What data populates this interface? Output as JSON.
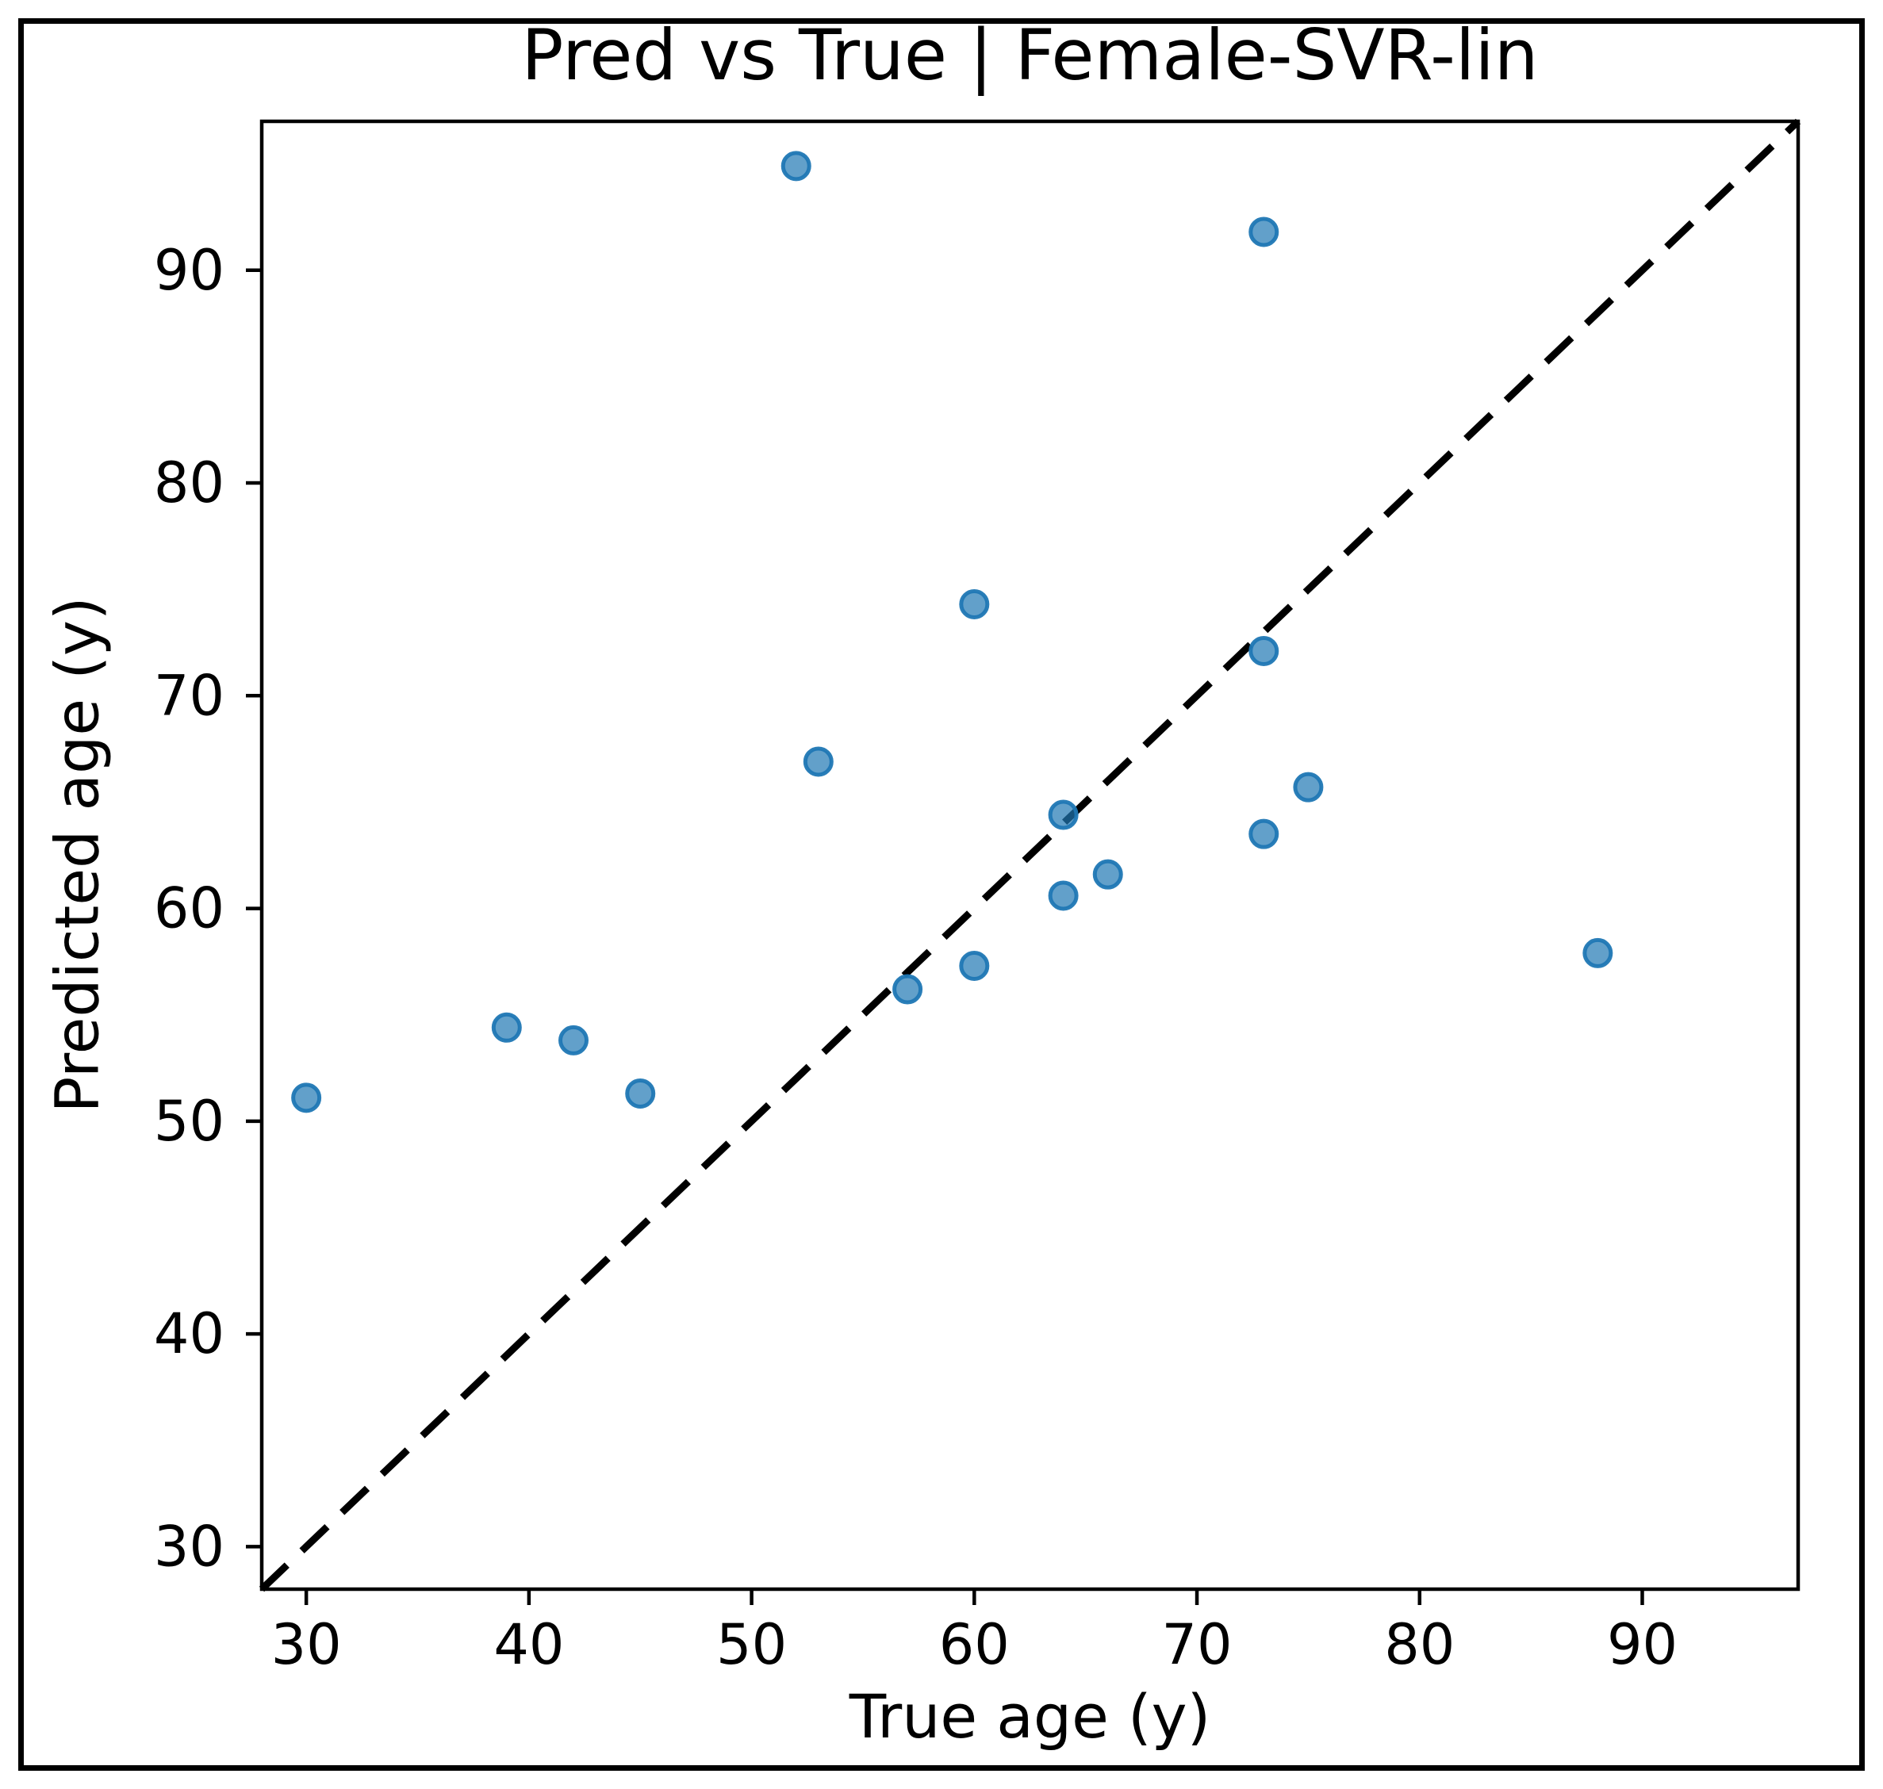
{
  "figure": {
    "background_color": "#ffffff",
    "frame_color": "#000000",
    "accent_color": "#1f77b4"
  },
  "chart_data": {
    "type": "scatter",
    "title": "Pred vs True | Female-SVR-lin",
    "xlabel": "True age (y)",
    "ylabel": "Predicted age (y)",
    "xlim": [
      28,
      97
    ],
    "ylim": [
      28,
      97
    ],
    "xticks": [
      30,
      40,
      50,
      60,
      70,
      80,
      90
    ],
    "yticks": [
      30,
      40,
      50,
      60,
      70,
      80,
      90
    ],
    "grid": false,
    "legend": null,
    "identity_line": {
      "style": "dashed",
      "color": "#000000",
      "x": [
        28,
        97
      ],
      "y": [
        28,
        97
      ]
    },
    "series": [
      {
        "name": "predicted-vs-true-points",
        "marker": "circle",
        "color": "#1f77b4",
        "alpha": 0.7,
        "points": [
          [
            30,
            51.1
          ],
          [
            39,
            54.4
          ],
          [
            42,
            53.8
          ],
          [
            45,
            51.3
          ],
          [
            52,
            94.9
          ],
          [
            53,
            66.9
          ],
          [
            57,
            56.2
          ],
          [
            60,
            74.3
          ],
          [
            60,
            57.3
          ],
          [
            64,
            64.4
          ],
          [
            64,
            60.6
          ],
          [
            66,
            61.6
          ],
          [
            73,
            91.8
          ],
          [
            73,
            72.1
          ],
          [
            73,
            63.5
          ],
          [
            75,
            65.7
          ],
          [
            88,
            57.9
          ]
        ]
      }
    ]
  }
}
